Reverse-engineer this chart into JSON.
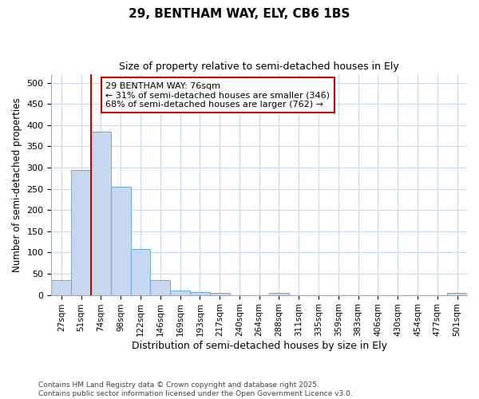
{
  "title1": "29, BENTHAM WAY, ELY, CB6 1BS",
  "title2": "Size of property relative to semi-detached houses in Ely",
  "xlabel": "Distribution of semi-detached houses by size in Ely",
  "ylabel": "Number of semi-detached properties",
  "categories": [
    "27sqm",
    "51sqm",
    "74sqm",
    "98sqm",
    "122sqm",
    "146sqm",
    "169sqm",
    "193sqm",
    "217sqm",
    "240sqm",
    "264sqm",
    "288sqm",
    "311sqm",
    "335sqm",
    "359sqm",
    "383sqm",
    "406sqm",
    "430sqm",
    "454sqm",
    "477sqm",
    "501sqm"
  ],
  "values": [
    35,
    295,
    385,
    255,
    108,
    35,
    11,
    7,
    5,
    0,
    0,
    4,
    0,
    0,
    0,
    0,
    0,
    0,
    0,
    0,
    5
  ],
  "bar_color": "#c5d8f0",
  "bar_edge_color": "#6aaad4",
  "grid_color": "#c8d8ee",
  "background_color": "#ffffff",
  "vline_color": "#cc0000",
  "vline_x_pos": 1.5,
  "annotation_title": "29 BENTHAM WAY: 76sqm",
  "annotation_line1": "← 31% of semi-detached houses are smaller (346)",
  "annotation_line2": "68% of semi-detached houses are larger (762) →",
  "annotation_box_color": "#cc0000",
  "footer": "Contains HM Land Registry data © Crown copyright and database right 2025.\nContains public sector information licensed under the Open Government Licence v3.0.",
  "ylim": [
    0,
    520
  ],
  "yticks": [
    0,
    50,
    100,
    150,
    200,
    250,
    300,
    350,
    400,
    450,
    500
  ]
}
